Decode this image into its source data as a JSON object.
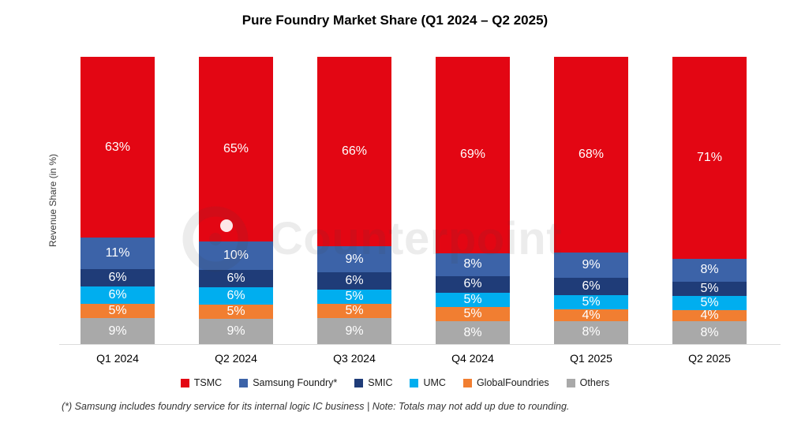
{
  "chart_data": {
    "type": "bar",
    "stacked": true,
    "title": "Pure Foundry Market Share (Q1 2024 – Q2 2025)",
    "ylabel": "Revenue Share (in %)",
    "xlabel": "",
    "categories": [
      "Q1 2024",
      "Q2 2024",
      "Q3 2024",
      "Q4 2024",
      "Q1 2025",
      "Q2 2025"
    ],
    "series": [
      {
        "name": "TSMC",
        "color": "#E30613",
        "values": [
          63,
          65,
          66,
          69,
          68,
          71
        ]
      },
      {
        "name": "Samsung Foundry*",
        "color": "#3C63A8",
        "values": [
          11,
          10,
          9,
          8,
          9,
          8
        ]
      },
      {
        "name": "SMIC",
        "color": "#1F3C78",
        "values": [
          6,
          6,
          6,
          6,
          6,
          5
        ]
      },
      {
        "name": "UMC",
        "color": "#00AEEF",
        "values": [
          6,
          6,
          5,
          5,
          5,
          5
        ]
      },
      {
        "name": "GlobalFoundries",
        "color": "#F17E31",
        "values": [
          5,
          5,
          5,
          5,
          4,
          4
        ]
      },
      {
        "name": "Others",
        "color": "#A9A9A9",
        "values": [
          9,
          9,
          9,
          8,
          8,
          8
        ]
      }
    ],
    "value_suffix": "%",
    "ylim": [
      0,
      100
    ],
    "grid": false,
    "legend_position": "bottom",
    "label_color": "#FFFFFF",
    "watermark": "Counterpoint",
    "footnote": "(*) Samsung includes foundry service for its internal logic IC business | Note: Totals may not add up due to rounding."
  }
}
